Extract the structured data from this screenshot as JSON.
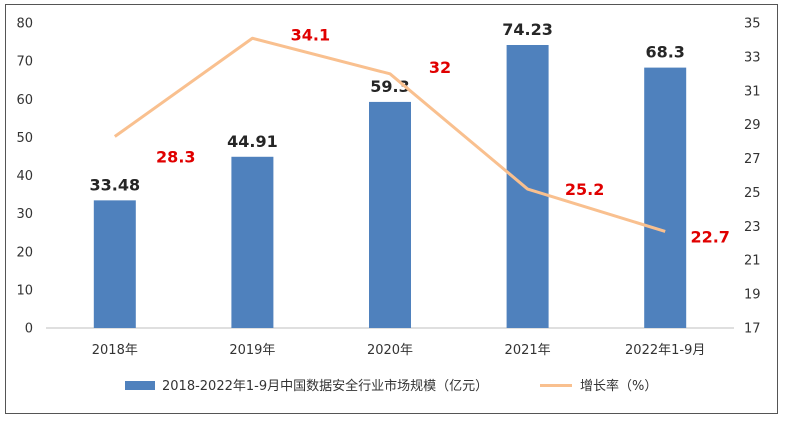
{
  "chart_data": {
    "type": "bar",
    "categories": [
      "2018年",
      "2019年",
      "2020年",
      "2021年",
      "2022年1-9月"
    ],
    "series": [
      {
        "name": "2018-2022年1-9月中国数据安全行业市场规模（亿元）",
        "type": "bar",
        "axis": "left",
        "values": [
          33.48,
          44.91,
          59.3,
          74.23,
          68.3
        ],
        "labels": [
          "33.48",
          "44.91",
          "59.3",
          "74.23",
          "68.3"
        ]
      },
      {
        "name": "增长率（%）",
        "type": "line",
        "axis": "right",
        "values": [
          28.3,
          34.1,
          32,
          25.2,
          22.7
        ],
        "labels": [
          "28.3",
          "34.1",
          "32",
          "25.2",
          "22.7"
        ]
      }
    ],
    "y_left": {
      "min": 0,
      "max": 80,
      "ticks": [
        "0",
        "10",
        "20",
        "30",
        "40",
        "50",
        "60",
        "70",
        "80"
      ]
    },
    "y_right": {
      "min": 17,
      "max": 35,
      "ticks": [
        "17",
        "19",
        "21",
        "23",
        "25",
        "27",
        "29",
        "31",
        "33",
        "35"
      ]
    },
    "legend_position": "bottom",
    "grid": false,
    "colors": {
      "bar": "#4f81bd",
      "line": "#f9c08f",
      "line_label": "#e00000"
    }
  }
}
